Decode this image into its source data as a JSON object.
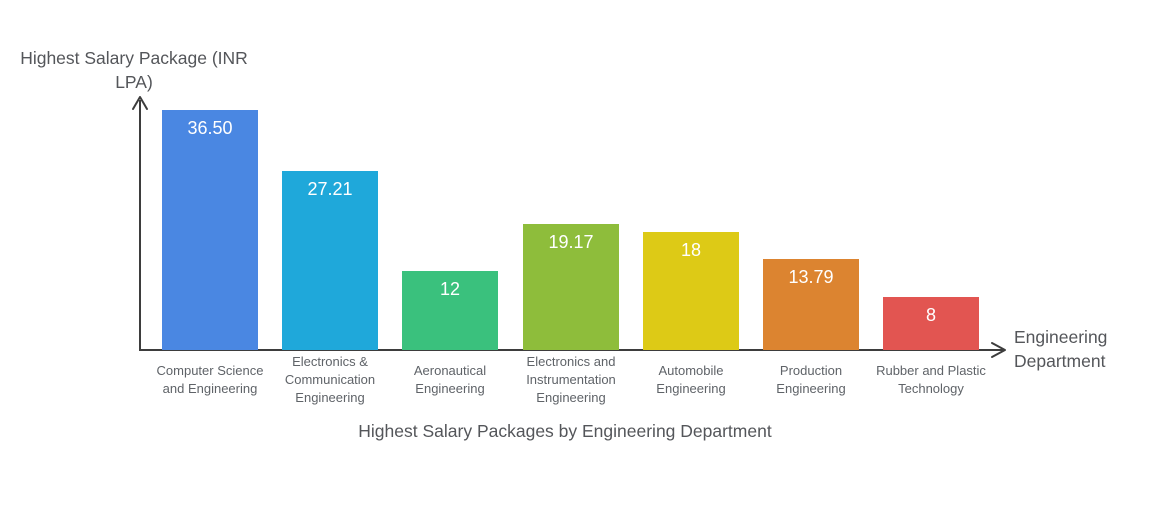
{
  "chart_data": {
    "type": "bar",
    "title": "Highest Salary Packages by Engineering Department",
    "xlabel": "Engineering Department",
    "ylabel": "Highest Salary Package (INR LPA)",
    "ylim": [
      0,
      36.5
    ],
    "grid": false,
    "legend": "none",
    "background": "#ffffff",
    "categories": [
      "Computer Science and Engineering",
      "Electronics & Communication Engineering",
      "Aeronautical Engineering",
      "Electronics and Instrumentation Engineering",
      "Automobile Engineering",
      "Production Engineering",
      "Rubber and Plastic Technology"
    ],
    "values": [
      36.5,
      27.21,
      12,
      19.17,
      18,
      13.79,
      8
    ],
    "bars": [
      {
        "category": "Computer Science and Engineering",
        "value": 36.5,
        "label": "36.50",
        "color": "#4a87e2"
      },
      {
        "category": "Electronics & Communication Engineering",
        "value": 27.21,
        "label": "27.21",
        "color": "#1fa8da"
      },
      {
        "category": "Aeronautical Engineering",
        "value": 12,
        "label": "12",
        "color": "#3ac17d"
      },
      {
        "category": "Electronics and Instrumentation Engineering",
        "value": 19.17,
        "label": "19.17",
        "color": "#8ebd3b"
      },
      {
        "category": "Automobile Engineering",
        "value": 18,
        "label": "18",
        "color": "#ddca16"
      },
      {
        "category": "Production Engineering",
        "value": 13.79,
        "label": "13.79",
        "color": "#dc8430"
      },
      {
        "category": "Rubber and Plastic Technology",
        "value": 8,
        "label": "8",
        "color": "#e25551"
      }
    ],
    "colors": {
      "axis": "#3d3d3d",
      "category_label": "#5f6368",
      "title_text": "#54565a",
      "value_label": "#ffffff"
    }
  }
}
